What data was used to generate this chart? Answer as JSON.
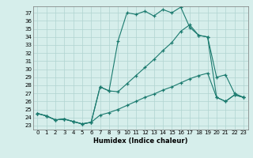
{
  "xlabel": "Humidex (Indice chaleur)",
  "xlim": [
    -0.5,
    23.5
  ],
  "ylim": [
    22.5,
    37.8
  ],
  "xticks": [
    0,
    1,
    2,
    3,
    4,
    5,
    6,
    7,
    8,
    9,
    10,
    11,
    12,
    13,
    14,
    15,
    16,
    17,
    18,
    19,
    20,
    21,
    22,
    23
  ],
  "yticks": [
    23,
    24,
    25,
    26,
    27,
    28,
    29,
    30,
    31,
    32,
    33,
    34,
    35,
    36,
    37
  ],
  "bg_color": "#d6eeeb",
  "grid_color": "#b0d4d0",
  "line_color": "#1a7a6e",
  "line1_x": [
    0,
    1,
    2,
    3,
    4,
    5,
    6,
    7,
    8,
    9,
    10,
    11,
    12,
    13,
    14,
    15,
    16,
    17,
    18,
    19,
    20,
    21,
    22,
    23
  ],
  "line1_y": [
    24.5,
    24.2,
    23.7,
    23.8,
    23.5,
    23.2,
    23.4,
    27.8,
    27.3,
    33.5,
    37.0,
    36.8,
    37.2,
    36.6,
    37.4,
    37.0,
    37.7,
    35.2,
    34.2,
    34.0,
    29.0,
    29.3,
    27.0,
    26.5
  ],
  "line2_x": [
    0,
    1,
    2,
    3,
    4,
    5,
    6,
    7,
    8,
    9,
    10,
    11,
    12,
    13,
    14,
    15,
    16,
    17,
    18,
    19,
    20,
    21,
    22,
    23
  ],
  "line2_y": [
    24.5,
    24.2,
    23.7,
    23.8,
    23.5,
    23.2,
    23.4,
    27.8,
    27.3,
    27.2,
    28.2,
    29.2,
    30.2,
    31.2,
    32.3,
    33.3,
    34.7,
    35.5,
    34.2,
    34.0,
    26.5,
    26.0,
    26.8,
    26.5
  ],
  "line3_x": [
    0,
    1,
    2,
    3,
    4,
    5,
    6,
    7,
    8,
    9,
    10,
    11,
    12,
    13,
    14,
    15,
    16,
    17,
    18,
    19,
    20,
    21,
    22,
    23
  ],
  "line3_y": [
    24.5,
    24.2,
    23.7,
    23.8,
    23.5,
    23.2,
    23.4,
    24.3,
    24.6,
    25.0,
    25.5,
    26.0,
    26.5,
    26.9,
    27.4,
    27.8,
    28.3,
    28.8,
    29.2,
    29.5,
    26.5,
    26.0,
    26.8,
    26.5
  ]
}
